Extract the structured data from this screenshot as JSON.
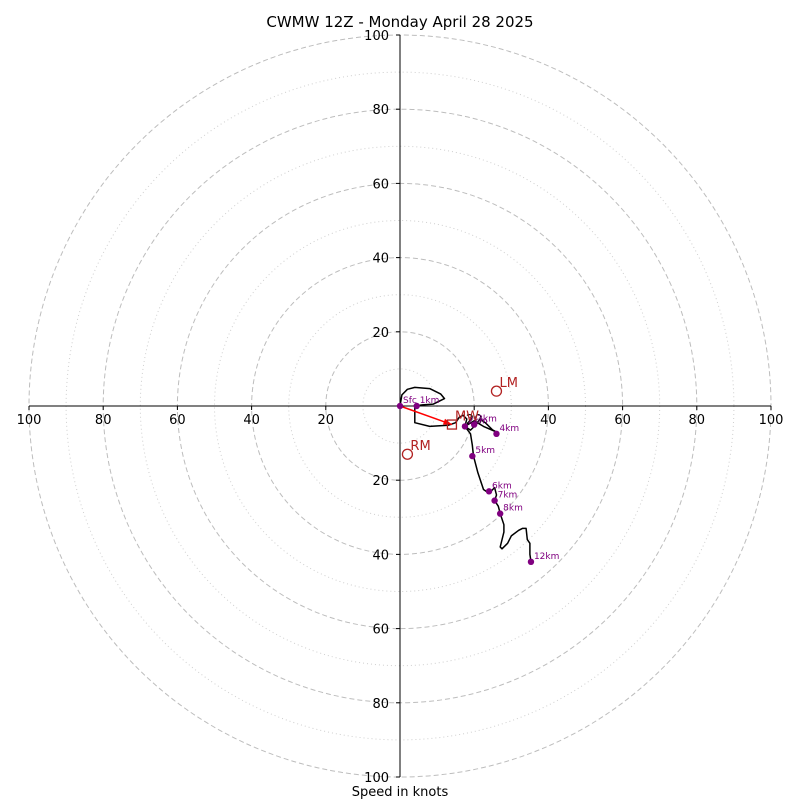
{
  "chart_data": {
    "type": "hodograph",
    "title": "CWMW 12Z - Monday April 28 2025",
    "xlabel": "Speed in knots",
    "ylabel": "",
    "xlim": [
      -100,
      100
    ],
    "ylim": [
      -100,
      100
    ],
    "tick_labels": [
      "100",
      "80",
      "60",
      "40",
      "20",
      "20",
      "40",
      "60",
      "80",
      "100"
    ],
    "tick_values": [
      -100,
      -80,
      -60,
      -40,
      -20,
      20,
      40,
      60,
      80,
      100
    ],
    "rings_dashed": [
      20,
      40,
      60,
      80,
      100
    ],
    "rings_dotted": [
      10,
      30,
      50,
      70,
      90
    ],
    "colors": {
      "trace": "#000000",
      "markers": "#800080",
      "motion": "#b22222",
      "shear_arrow": "#ff0000",
      "grid": "#bdbdbd"
    },
    "hodograph_trace": [
      [
        0,
        0
      ],
      [
        0.5,
        3
      ],
      [
        2,
        4.5
      ],
      [
        4,
        5
      ],
      [
        8,
        4.7
      ],
      [
        11,
        3.2
      ],
      [
        12,
        2
      ],
      [
        9,
        0.5
      ],
      [
        6,
        0.3
      ],
      [
        4,
        0
      ],
      [
        4,
        -4.5
      ],
      [
        8,
        -5.5
      ],
      [
        13,
        -5.2
      ],
      [
        15,
        -4.5
      ],
      [
        16,
        -3
      ],
      [
        17,
        -2.5
      ],
      [
        18,
        -3.5
      ],
      [
        17.5,
        -5.5
      ],
      [
        19,
        -6.5
      ],
      [
        20.5,
        -5
      ],
      [
        21.5,
        -3.5
      ],
      [
        23,
        -4.5
      ],
      [
        25,
        -6.5
      ],
      [
        26,
        -7
      ],
      [
        22.5,
        -5.5
      ],
      [
        20,
        -4
      ],
      [
        17.5,
        -5.5
      ],
      [
        19,
        -7.5
      ],
      [
        19.5,
        -10.5
      ],
      [
        19.8,
        -13.5
      ],
      [
        21,
        -18
      ],
      [
        22.5,
        -22.5
      ],
      [
        24,
        -23.5
      ],
      [
        25.5,
        -22
      ],
      [
        26,
        -24
      ],
      [
        25.5,
        -25.5
      ],
      [
        26.5,
        -27
      ],
      [
        27,
        -29
      ],
      [
        28,
        -32
      ],
      [
        28,
        -34
      ],
      [
        27,
        -38
      ],
      [
        27.5,
        -38.5
      ],
      [
        29,
        -37
      ],
      [
        30,
        -35
      ],
      [
        32,
        -33.5
      ],
      [
        33,
        -33
      ],
      [
        34,
        -33
      ],
      [
        34.3,
        -36
      ],
      [
        35,
        -37
      ],
      [
        35,
        -40
      ],
      [
        35.3,
        -42
      ]
    ],
    "height_markers": [
      {
        "label": "Sfc",
        "u": 0,
        "v": 0
      },
      {
        "label": "1km",
        "u": 4.5,
        "v": 0
      },
      {
        "label": "2km",
        "u": 17.5,
        "v": -5.5
      },
      {
        "label": "3km",
        "u": 20,
        "v": -5
      },
      {
        "label": "4km",
        "u": 26,
        "v": -7.5
      },
      {
        "label": "5km",
        "u": 19.5,
        "v": -13.5
      },
      {
        "label": "6km",
        "u": 24,
        "v": -23
      },
      {
        "label": "7km",
        "u": 25.5,
        "v": -25.5
      },
      {
        "label": "8km",
        "u": 27,
        "v": -29
      },
      {
        "label": "12km",
        "u": 35.3,
        "v": -42
      }
    ],
    "storm_motion": [
      {
        "label": "LM",
        "u": 26,
        "v": 4
      },
      {
        "label": "RM",
        "u": 2,
        "v": -13
      },
      {
        "label": "MW",
        "u": 14,
        "v": -5
      }
    ],
    "mean_wind_box": {
      "u": 14,
      "v": -5
    },
    "shear_arrow": {
      "from": [
        0,
        0
      ],
      "to": [
        14,
        -5
      ]
    }
  }
}
